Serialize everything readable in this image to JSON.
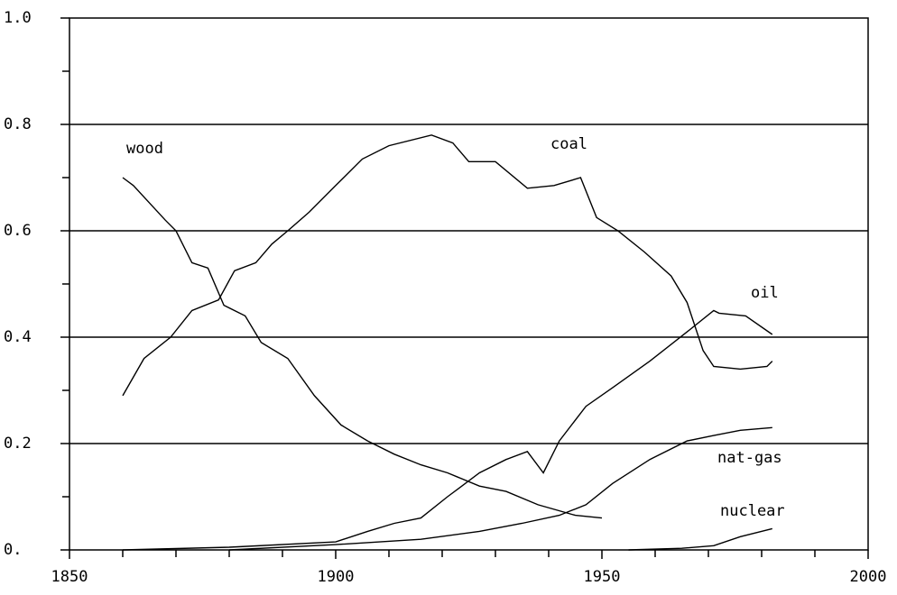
{
  "chart_data": {
    "type": "line",
    "xlim": [
      1850,
      2000
    ],
    "xticks": [
      1850,
      1900,
      1950,
      2000
    ],
    "xticks_minor": [
      1860,
      1870,
      1880,
      1890,
      1910,
      1920,
      1930,
      1940,
      1960,
      1970,
      1980,
      1990
    ],
    "ylim": [
      0,
      1
    ],
    "yticks": [
      {
        "value": 0,
        "label": "0."
      },
      0.2,
      0.4,
      0.6,
      0.8,
      {
        "value": 1,
        "label": "1.0"
      }
    ],
    "yticks_minor": [
      0.1,
      0.3,
      0.5,
      0.7,
      0.9
    ],
    "grid": true,
    "series": [
      {
        "name": "wood",
        "color": "#000000",
        "x": [
          1860,
          1862,
          1868,
          1870,
          1873,
          1876,
          1879,
          1883,
          1886,
          1891,
          1896,
          1901,
          1906,
          1911,
          1916,
          1921,
          1927,
          1932,
          1938,
          1945,
          1950
        ],
        "values": [
          0.7,
          0.685,
          0.62,
          0.6,
          0.54,
          0.53,
          0.46,
          0.44,
          0.39,
          0.36,
          0.29,
          0.235,
          0.205,
          0.18,
          0.16,
          0.145,
          0.12,
          0.11,
          0.085,
          0.065,
          0.06
        ]
      },
      {
        "name": "coal",
        "color": "#000000",
        "x": [
          1860,
          1864,
          1869,
          1873,
          1878,
          1881,
          1885,
          1888,
          1891,
          1895,
          1900,
          1905,
          1910,
          1918,
          1922,
          1925,
          1930,
          1936,
          1941,
          1946,
          1949,
          1953,
          1958,
          1963,
          1966,
          1969,
          1971,
          1976,
          1981,
          1982
        ],
        "values": [
          0.29,
          0.36,
          0.4,
          0.45,
          0.47,
          0.525,
          0.54,
          0.575,
          0.6,
          0.635,
          0.685,
          0.735,
          0.76,
          0.78,
          0.765,
          0.73,
          0.73,
          0.68,
          0.685,
          0.7,
          0.625,
          0.6,
          0.56,
          0.515,
          0.465,
          0.375,
          0.345,
          0.34,
          0.345,
          0.355
        ]
      },
      {
        "name": "oil",
        "color": "#000000",
        "x": [
          1860,
          1880,
          1900,
          1906,
          1911,
          1916,
          1921,
          1927,
          1932,
          1936,
          1939,
          1942,
          1947,
          1952,
          1959,
          1966,
          1971,
          1972,
          1977,
          1982
        ],
        "values": [
          0,
          0.005,
          0.015,
          0.035,
          0.05,
          0.06,
          0.1,
          0.145,
          0.17,
          0.185,
          0.145,
          0.205,
          0.27,
          0.305,
          0.355,
          0.41,
          0.45,
          0.445,
          0.44,
          0.405
        ]
      },
      {
        "name": "nat-gas",
        "color": "#000000",
        "x": [
          1880,
          1900,
          1916,
          1927,
          1935,
          1942,
          1947,
          1952,
          1959,
          1966,
          1971,
          1976,
          1982
        ],
        "values": [
          0,
          0.01,
          0.02,
          0.035,
          0.05,
          0.065,
          0.085,
          0.125,
          0.17,
          0.205,
          0.215,
          0.225,
          0.23
        ]
      },
      {
        "name": "nuclear",
        "color": "#000000",
        "x": [
          1955,
          1965,
          1971,
          1976,
          1982
        ],
        "values": [
          0,
          0.003,
          0.008,
          0.025,
          0.04
        ]
      }
    ]
  }
}
